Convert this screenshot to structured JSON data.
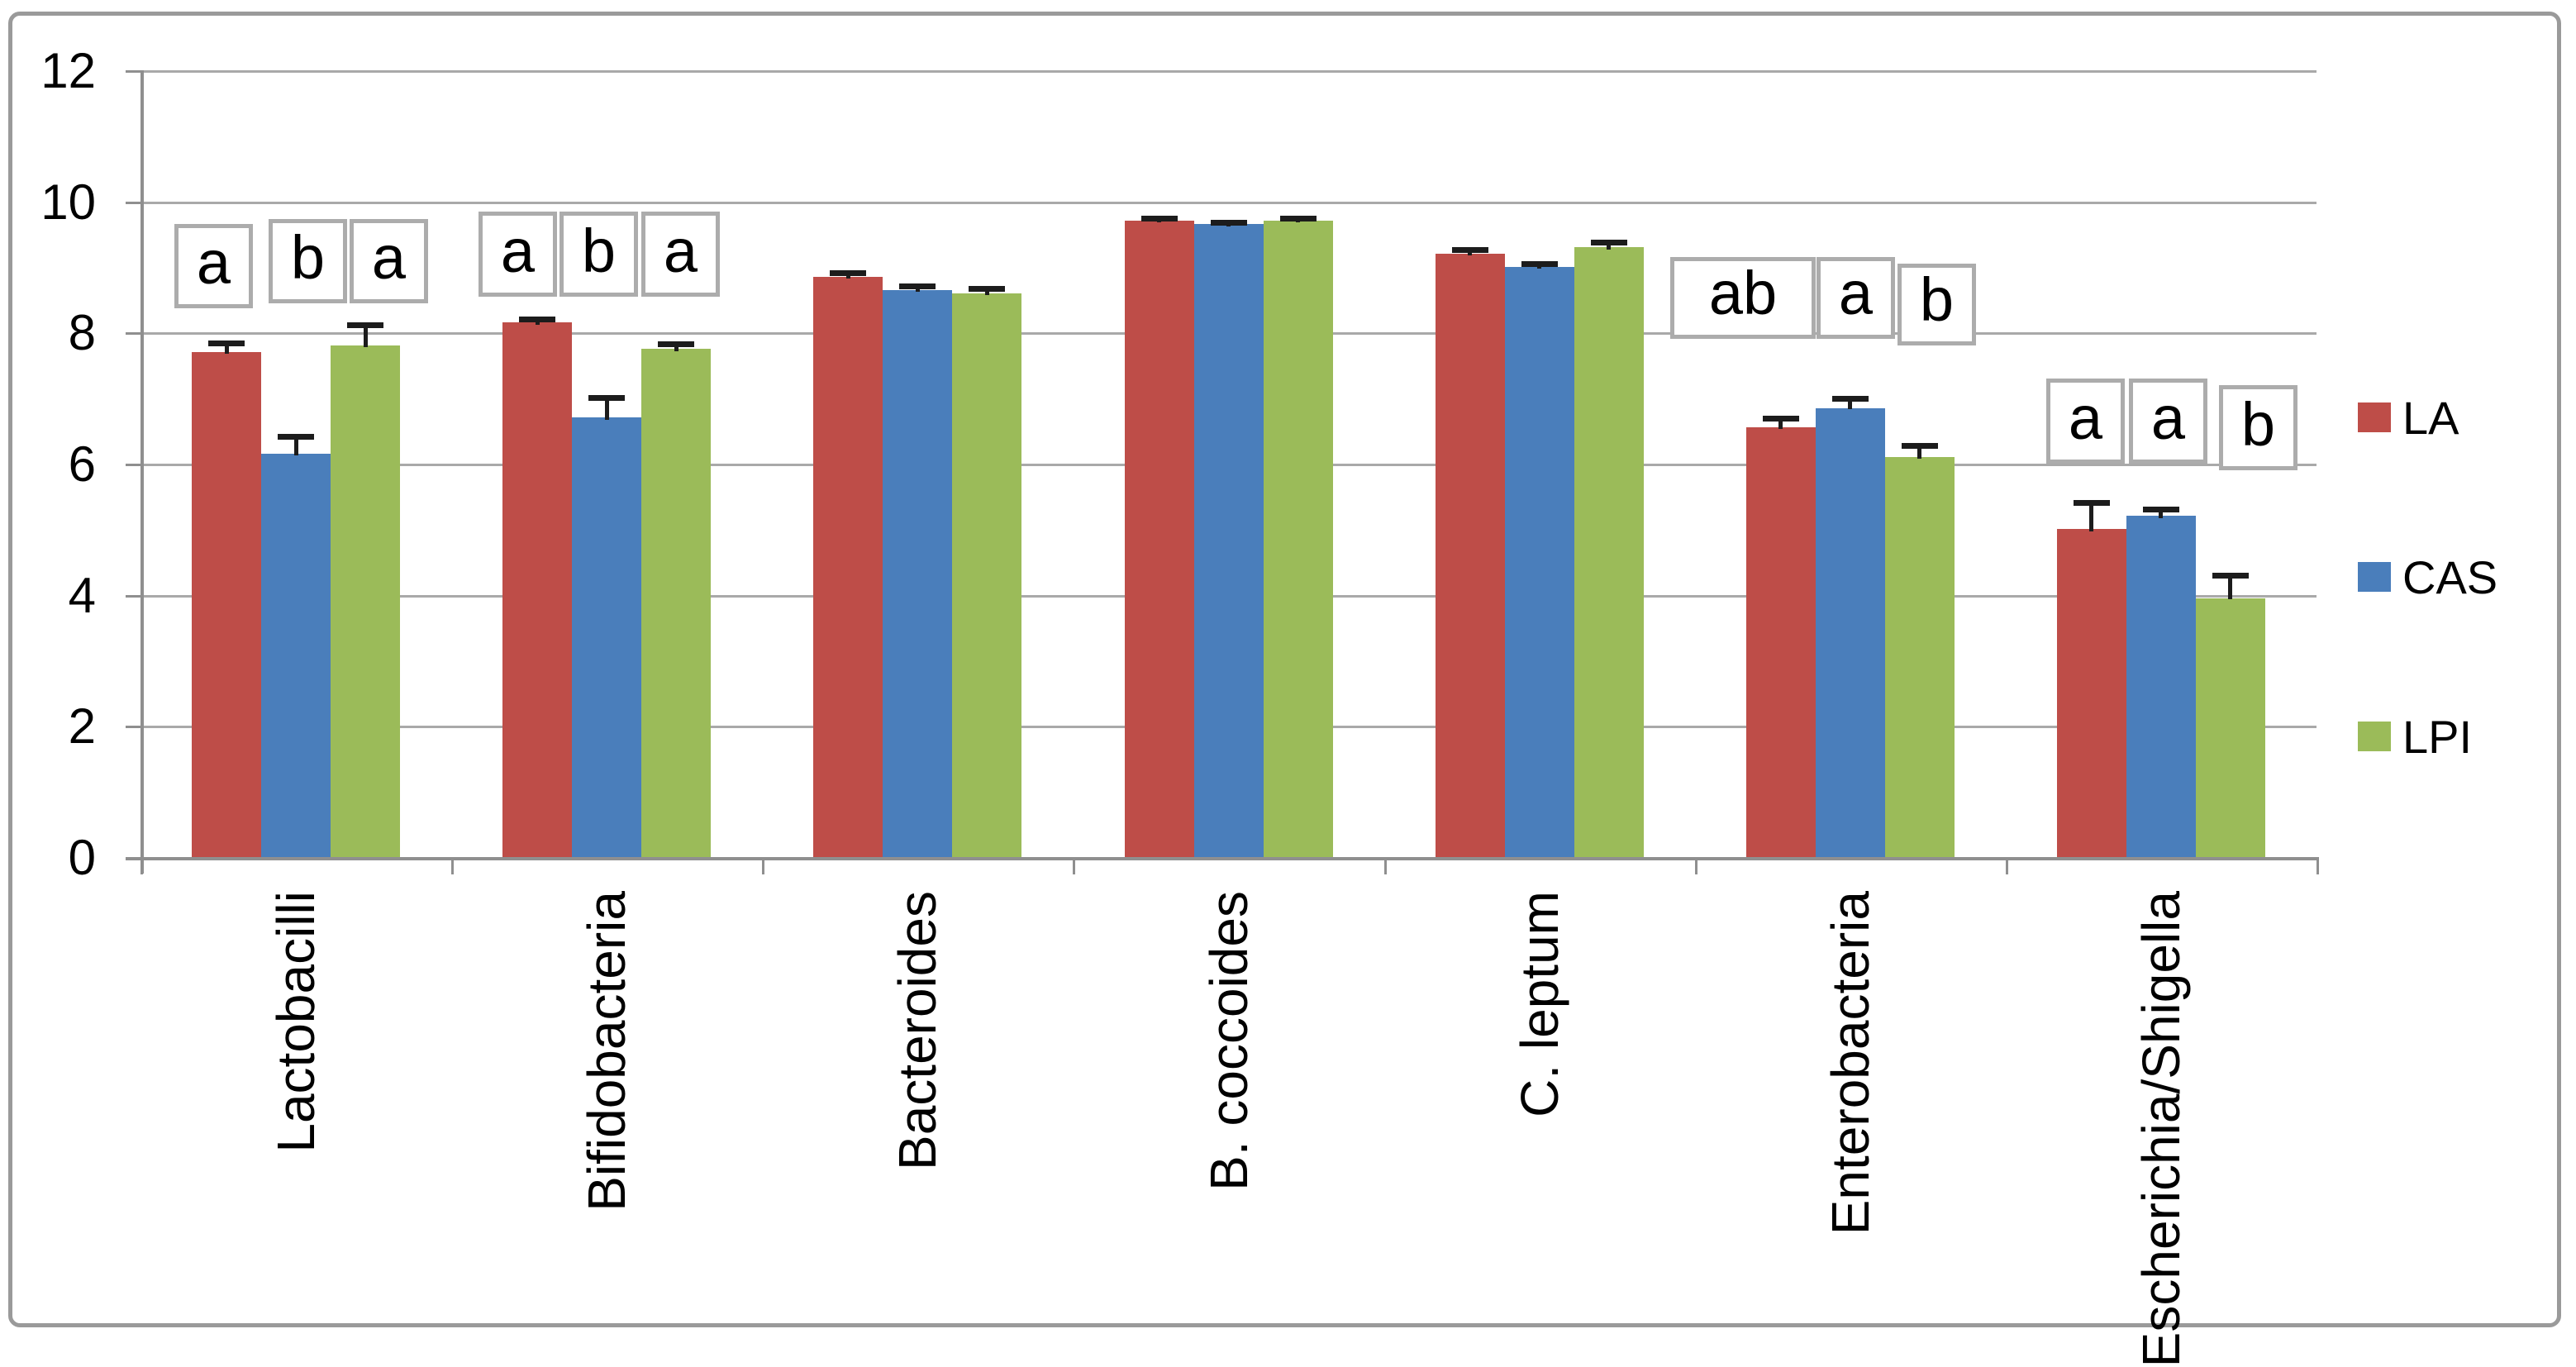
{
  "chart_data": {
    "type": "bar",
    "title": "",
    "xlabel": "",
    "ylabel": "",
    "categories": [
      "Lactobacilli",
      "Bifidobacteria",
      "Bacteroides",
      "B. coccoides",
      "C. leptum",
      "Enterobacteria",
      "Escherichia/Shigella"
    ],
    "series": [
      {
        "name": "LA",
        "color": "#be4d48",
        "values": [
          7.7,
          8.15,
          8.85,
          9.7,
          9.2,
          6.55,
          5.0
        ],
        "errors": [
          0.18,
          0.1,
          0.1,
          0.08,
          0.1,
          0.18,
          0.45
        ]
      },
      {
        "name": "CAS",
        "color": "#4a7ebb",
        "values": [
          6.15,
          6.7,
          8.65,
          9.65,
          9.0,
          6.85,
          5.2
        ],
        "errors": [
          0.3,
          0.35,
          0.1,
          0.07,
          0.09,
          0.18,
          0.15
        ]
      },
      {
        "name": "LPI",
        "color": "#9bbb59",
        "values": [
          7.8,
          7.75,
          8.6,
          9.7,
          9.3,
          6.1,
          3.95
        ],
        "errors": [
          0.35,
          0.12,
          0.11,
          0.08,
          0.12,
          0.22,
          0.38
        ]
      }
    ],
    "significance_labels": [
      {
        "category_index": 0,
        "letters": [
          "a",
          "b",
          "a"
        ],
        "span": [
          8.45,
          9.73
        ],
        "dx": [
          -16,
          14,
          28
        ],
        "dy": [
          6,
          0,
          0
        ],
        "wide_first": false
      },
      {
        "category_index": 1,
        "letters": [
          "a",
          "b",
          "a"
        ],
        "span": [
          8.55,
          9.85
        ],
        "dx": [
          -24,
          -10,
          5
        ],
        "dy": [
          0,
          0,
          0
        ],
        "wide_first": false
      },
      {
        "category_index": 5,
        "letters": [
          "ab",
          "a",
          "b"
        ],
        "span": [
          7.9,
          9.15
        ],
        "dx": [
          0,
          7,
          21
        ],
        "dy": [
          0,
          0,
          8
        ],
        "wide_first": true
      },
      {
        "category_index": 6,
        "letters": [
          "a",
          "a",
          "b"
        ],
        "span": [
          6.0,
          7.3
        ],
        "dx": [
          -7,
          9,
          34
        ],
        "dy": [
          0,
          0,
          8
        ],
        "wide_first": false
      }
    ],
    "ylim": [
      0,
      12
    ],
    "yticks": [
      0,
      2,
      4,
      6,
      8,
      10,
      12
    ],
    "grid": true,
    "legend_position": "right"
  },
  "colors": {
    "gridline": "#a9a9a9",
    "axis": "#8f8f8f",
    "frame_border": "#9a9a9a",
    "sig_box_border": "#acacac",
    "error_bar": "#1c1c1c",
    "text": "#000000",
    "background": "#ffffff"
  }
}
